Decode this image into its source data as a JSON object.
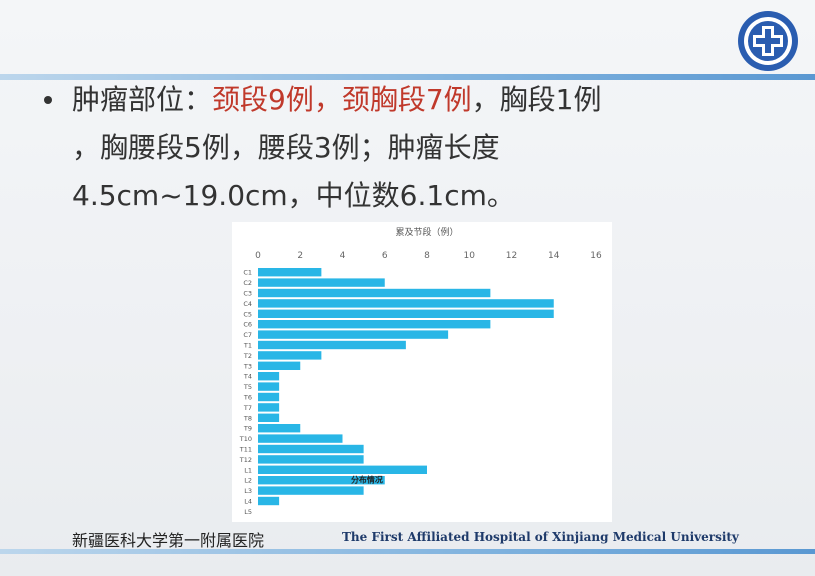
{
  "slide": {
    "line1_prefix": "肿瘤部位：",
    "line1_red1": "颈段9例，",
    "line1_red2": "颈胸段7例",
    "line1_suffix": "，胸段1例",
    "line2": "，胸腰段5例，腰段3例；肿瘤长度",
    "line3": "4.5cm~19.0cm，中位数6.1cm。"
  },
  "footer": {
    "cn": "新疆医科大学第一附属医院",
    "en": "The First Affiliated Hospital of Xinjiang Medical University"
  },
  "colors": {
    "bar": "#29b6e6",
    "red_text": "#c0392b",
    "logo_blue": "#2a5db0"
  },
  "chart_data": {
    "type": "bar",
    "orientation": "horizontal",
    "title": "累及节段（例）",
    "annotation": "分布情况",
    "xlim": [
      0,
      16
    ],
    "xticks": [
      0,
      2,
      4,
      6,
      8,
      10,
      12,
      14,
      16
    ],
    "categories": [
      "C1",
      "C2",
      "C3",
      "C4",
      "C5",
      "C6",
      "C7",
      "T1",
      "T2",
      "T3",
      "T4",
      "T5",
      "T6",
      "T7",
      "T8",
      "T9",
      "T10",
      "T11",
      "T12",
      "L1",
      "L2",
      "L3",
      "L4",
      "L5"
    ],
    "values": [
      3,
      6,
      11,
      14,
      14,
      11,
      9,
      7,
      3,
      2,
      1,
      1,
      1,
      1,
      1,
      2,
      4,
      5,
      5,
      8,
      6,
      5,
      1,
      0
    ],
    "grid": false
  }
}
